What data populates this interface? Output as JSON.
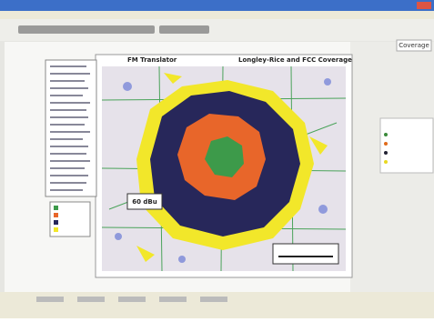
{
  "window": {
    "tab": "Coverage"
  },
  "map": {
    "left_title": "FM Translator",
    "right_title": "Longley-Rice and FCC Coverage",
    "contour_label": "60 dBu"
  }
}
